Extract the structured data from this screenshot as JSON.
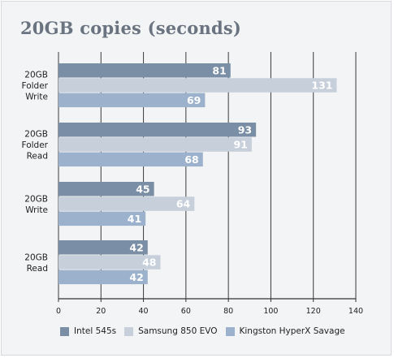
{
  "chart_data": {
    "type": "bar",
    "orientation": "horizontal",
    "title": "20GB copies (seconds)",
    "categories": [
      "20GB Folder Write",
      "20GB Folder Read",
      "20GB Write",
      "20GB Read"
    ],
    "category_lines": [
      [
        "20GB",
        "Folder",
        "Write"
      ],
      [
        "20GB",
        "Folder",
        "Read"
      ],
      [
        "20GB",
        "Write"
      ],
      [
        "20GB",
        "Read"
      ]
    ],
    "series": [
      {
        "name": "Intel 545s",
        "values": [
          81,
          93,
          45,
          42
        ],
        "color": "#7a8ea5"
      },
      {
        "name": "Samsung 850 EVO",
        "values": [
          131,
          91,
          64,
          48
        ],
        "color": "#c7cfdb"
      },
      {
        "name": "Kingston HyperX Savage",
        "values": [
          69,
          68,
          41,
          42
        ],
        "color": "#9cb2cc"
      }
    ],
    "xlim": [
      0,
      140
    ],
    "xticks": [
      0,
      20,
      40,
      60,
      80,
      100,
      120,
      140
    ],
    "grid": "vertical",
    "legend_position": "bottom"
  }
}
